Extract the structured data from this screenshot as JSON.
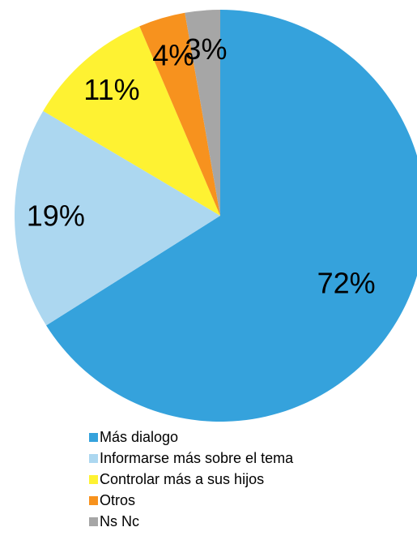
{
  "chart_data": {
    "type": "pie",
    "categories": [
      "Más dialogo",
      "Informarse más sobre el tema",
      "Controlar más a sus hijos",
      "Otros",
      "Ns Nc"
    ],
    "values": [
      72,
      19,
      11,
      4,
      3
    ],
    "value_labels": [
      "72%",
      "19%",
      "11%",
      "4%",
      "3%"
    ],
    "colors": [
      "#35a2dc",
      "#acd7f0",
      "#fef232",
      "#f7921e",
      "#a6a6a6"
    ],
    "legend": "bottom"
  }
}
